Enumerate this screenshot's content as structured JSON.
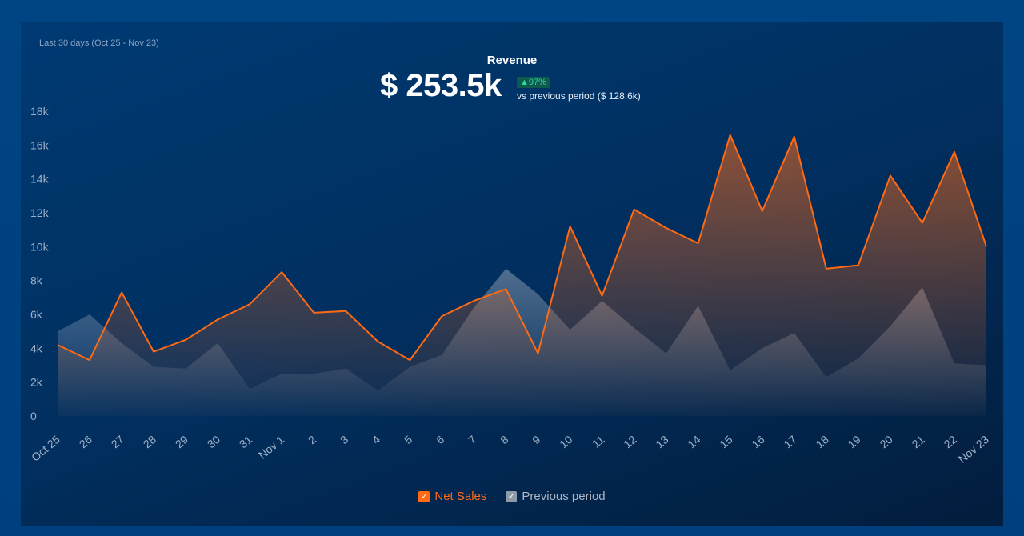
{
  "header": {
    "date_range": "Last 30 days (Oct 25 - Nov 23)",
    "title": "Revenue",
    "total": "$ 253.5k",
    "change_badge": "▲97%",
    "comparison": "vs previous period ($ 128.6k)"
  },
  "colors": {
    "net_sales": "#ff6a13",
    "previous": "#8e99aa",
    "axis_text": "#9fb1c8"
  },
  "chart_data": {
    "type": "area",
    "y_ticks": [
      "0",
      "2k",
      "4k",
      "6k",
      "8k",
      "10k",
      "12k",
      "14k",
      "16k",
      "18k"
    ],
    "ylim": [
      0,
      18000
    ],
    "categories": [
      "Oct 25",
      "26",
      "27",
      "28",
      "29",
      "30",
      "31",
      "Nov 1",
      "2",
      "3",
      "4",
      "5",
      "6",
      "7",
      "8",
      "9",
      "10",
      "11",
      "12",
      "13",
      "14",
      "15",
      "16",
      "17",
      "18",
      "19",
      "20",
      "21",
      "22",
      "Nov 23"
    ],
    "series": [
      {
        "name": "Net Sales",
        "values": [
          4200,
          3300,
          7300,
          3800,
          4500,
          5700,
          6600,
          8500,
          6100,
          6200,
          4400,
          3300,
          5900,
          6800,
          7500,
          3700,
          11200,
          7100,
          12200,
          11100,
          10200,
          16600,
          12100,
          16500,
          8700,
          8900,
          14200,
          11400,
          15600,
          10000
        ]
      },
      {
        "name": "Previous period",
        "values": [
          5000,
          6000,
          4300,
          2900,
          2800,
          4300,
          1600,
          2500,
          2500,
          2800,
          1500,
          2900,
          3600,
          6400,
          8700,
          7200,
          5100,
          6800,
          5200,
          3700,
          6500,
          2700,
          4000,
          4900,
          2300,
          3400,
          5300,
          7600,
          3100,
          3000
        ]
      }
    ],
    "legend": {
      "net_sales": "Net Sales",
      "previous": "Previous period"
    }
  }
}
